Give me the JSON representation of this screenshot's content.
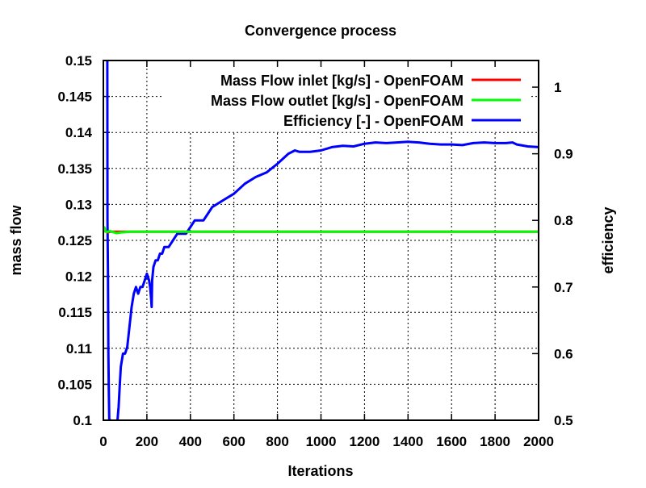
{
  "chart_data": {
    "type": "line",
    "title": "Convergence process",
    "xlabel": "Iterations",
    "ylabel": "mass flow",
    "y2label": "efficiency",
    "xlim": [
      0,
      2000
    ],
    "ylim": [
      0.1,
      0.15
    ],
    "y2lim": [
      0.5,
      1.04
    ],
    "grid": true,
    "legend_position": "top-right",
    "x_ticks": [
      "0",
      "200",
      "400",
      "600",
      "800",
      "1000",
      "1200",
      "1400",
      "1600",
      "1800",
      "2000"
    ],
    "y_ticks": [
      "0.1",
      "0.105",
      "0.11",
      "0.115",
      "0.12",
      "0.125",
      "0.13",
      "0.135",
      "0.14",
      "0.145",
      "0.15"
    ],
    "y2_ticks": [
      "0.5",
      "0.6",
      "0.7",
      "0.8",
      "0.9",
      "1"
    ],
    "series": [
      {
        "name": "Mass Flow inlet [kg/s] - OpenFOAM",
        "color": "#ff0000",
        "axis": "y",
        "x": [
          0,
          5,
          10,
          20,
          30,
          50,
          80,
          120,
          200,
          400,
          600,
          800,
          1000,
          1200,
          1400,
          1600,
          1800,
          2000
        ],
        "y": [
          0.1262,
          0.1264,
          0.1263,
          0.1261,
          0.1262,
          0.1262,
          0.1262,
          0.1262,
          0.1262,
          0.1262,
          0.1262,
          0.1262,
          0.1262,
          0.1262,
          0.1262,
          0.1262,
          0.1262,
          0.1262
        ]
      },
      {
        "name": "Mass Flow outlet [kg/s] - OpenFOAM",
        "color": "#00ff00",
        "axis": "y",
        "x": [
          0,
          5,
          10,
          20,
          30,
          40,
          60,
          80,
          120,
          200,
          400,
          600,
          800,
          1000,
          1200,
          1400,
          1600,
          1800,
          2000
        ],
        "y": [
          0.1265,
          0.1268,
          0.1262,
          0.1262,
          0.1263,
          0.1262,
          0.126,
          0.1261,
          0.1262,
          0.1262,
          0.1262,
          0.1262,
          0.1262,
          0.1262,
          0.1262,
          0.1262,
          0.1262,
          0.1262,
          0.1262
        ]
      },
      {
        "name": "Efficiency [-] - OpenFOAM",
        "color": "#0000ff",
        "axis": "y2",
        "x": [
          18,
          19,
          21,
          23,
          25,
          27,
          29,
          32,
          35,
          40,
          45,
          55,
          65,
          70,
          75,
          80,
          90,
          100,
          110,
          120,
          130,
          140,
          150,
          160,
          170,
          180,
          190,
          200,
          210,
          215,
          220,
          222,
          224,
          230,
          240,
          250,
          260,
          270,
          280,
          300,
          320,
          340,
          360,
          380,
          400,
          420,
          440,
          460,
          480,
          500,
          550,
          600,
          650,
          700,
          750,
          800,
          850,
          880,
          900,
          950,
          1000,
          1050,
          1100,
          1150,
          1200,
          1250,
          1300,
          1350,
          1400,
          1450,
          1500,
          1550,
          1600,
          1650,
          1700,
          1750,
          1800,
          1850,
          1880,
          1900,
          1950,
          2000
        ],
        "y": [
          1.04,
          0.8,
          0.72,
          0.6,
          0.55,
          0.5,
          0.48,
          0.5,
          0.46,
          0.47,
          0.49,
          0.48,
          0.5,
          0.52,
          0.55,
          0.58,
          0.6,
          0.6,
          0.61,
          0.64,
          0.67,
          0.69,
          0.7,
          0.69,
          0.7,
          0.7,
          0.71,
          0.72,
          0.71,
          0.7,
          0.68,
          0.67,
          0.71,
          0.73,
          0.74,
          0.74,
          0.75,
          0.75,
          0.76,
          0.76,
          0.77,
          0.78,
          0.78,
          0.78,
          0.79,
          0.8,
          0.8,
          0.8,
          0.81,
          0.82,
          0.83,
          0.84,
          0.855,
          0.865,
          0.872,
          0.885,
          0.9,
          0.905,
          0.903,
          0.903,
          0.905,
          0.91,
          0.912,
          0.911,
          0.915,
          0.917,
          0.916,
          0.917,
          0.918,
          0.917,
          0.915,
          0.914,
          0.914,
          0.913,
          0.916,
          0.917,
          0.916,
          0.916,
          0.917,
          0.914,
          0.911,
          0.91
        ]
      }
    ]
  }
}
